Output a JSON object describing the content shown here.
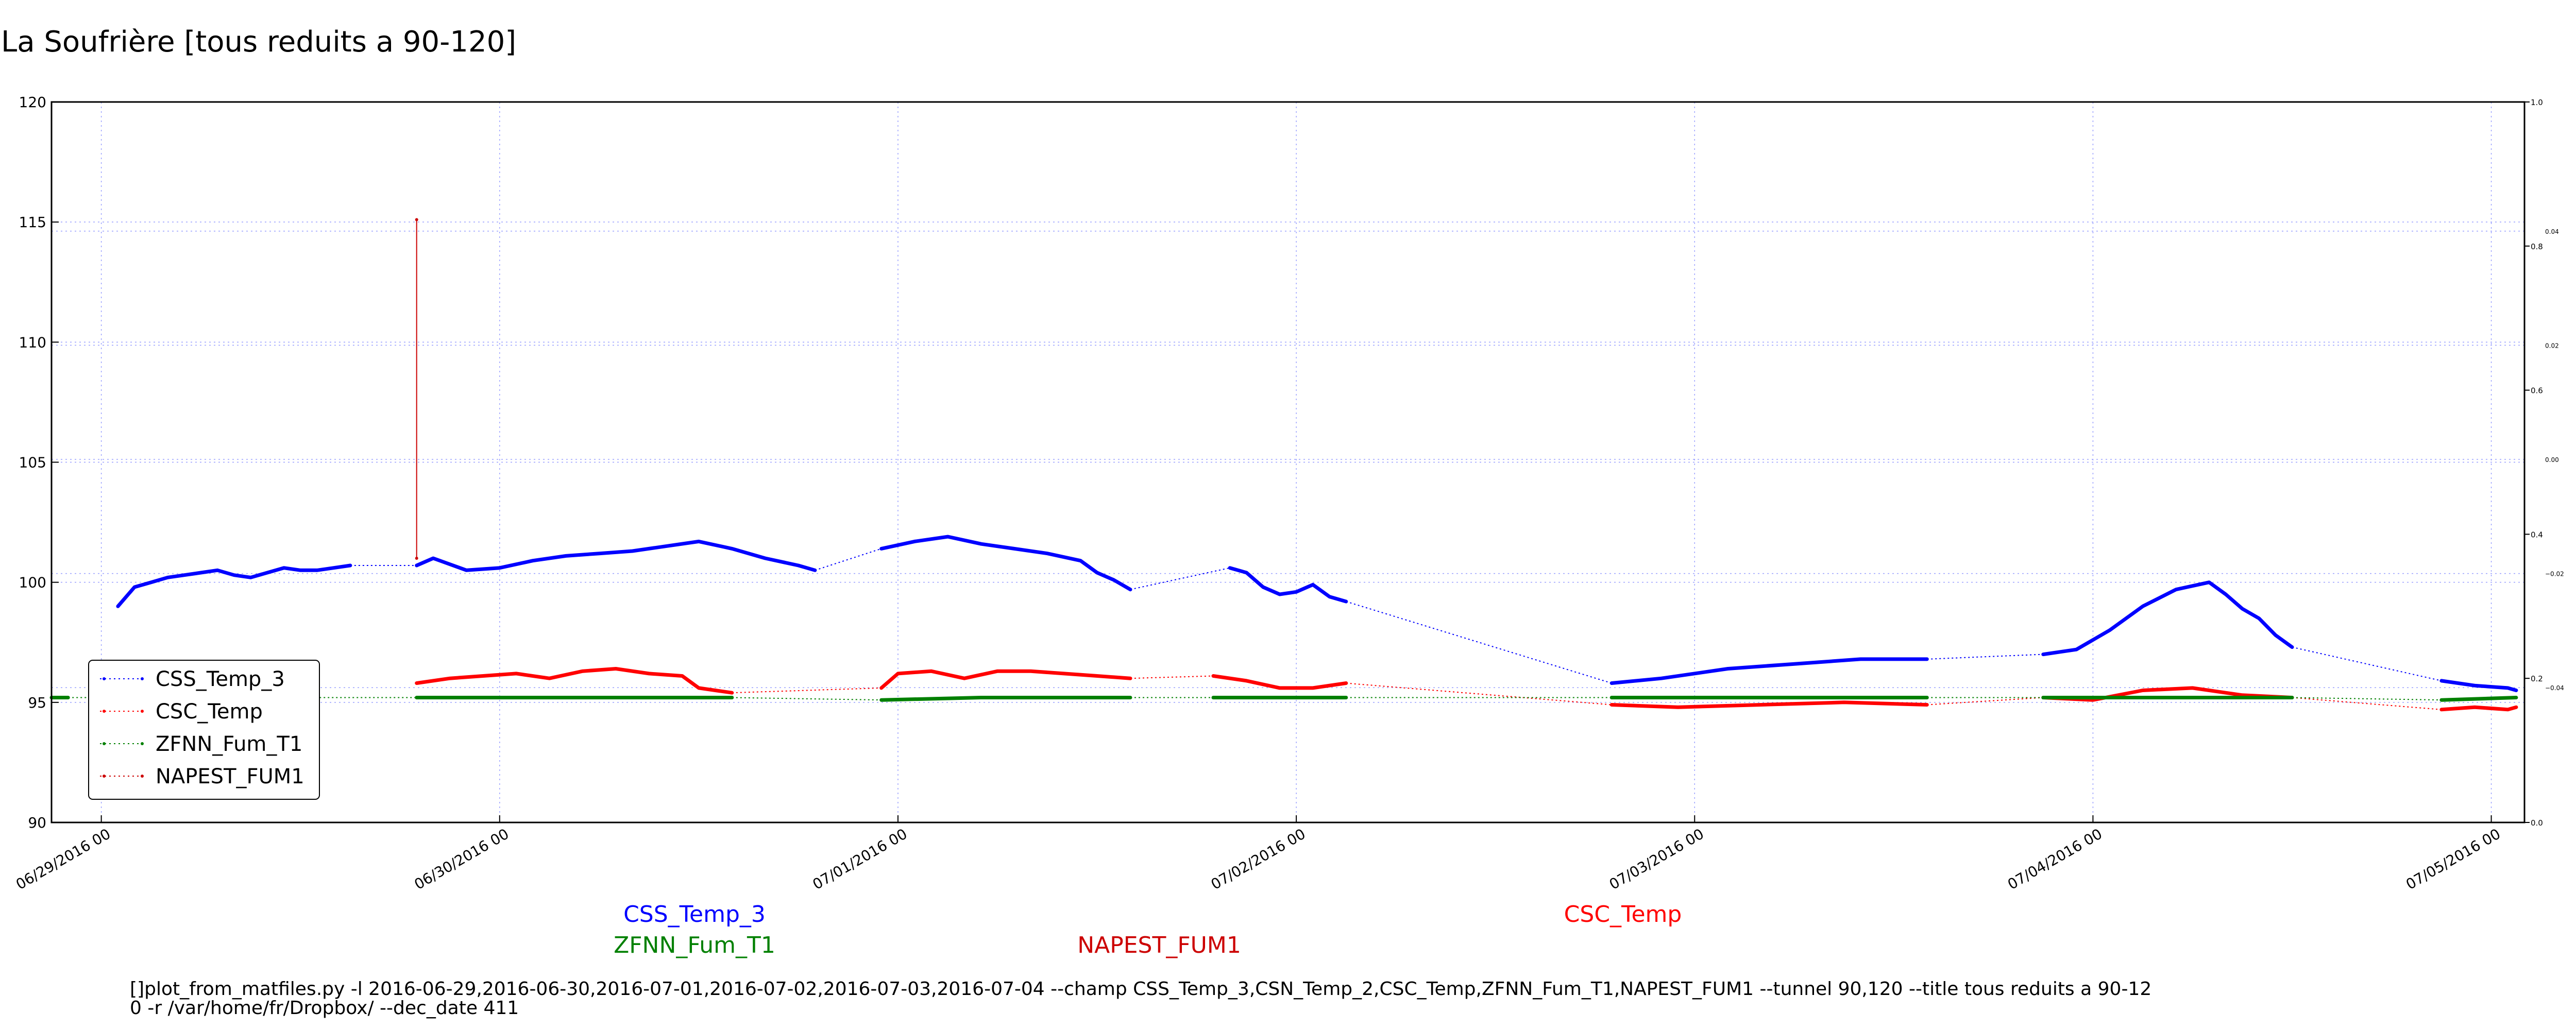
{
  "chart_data": {
    "type": "line",
    "title": "La Soufrière [tous reduits a 90-120]",
    "xlabel": "",
    "ylabel": "",
    "ylim": [
      90,
      120
    ],
    "yticks": [
      "90",
      "95",
      "100",
      "105",
      "110",
      "115",
      "120"
    ],
    "xlim": [
      "2016-06-28 21:00",
      "2016-07-05 02:00"
    ],
    "xticks": [
      {
        "t": "2016-06-29 00:00",
        "label": "06/29/2016 00"
      },
      {
        "t": "2016-06-30 00:00",
        "label": "06/30/2016 00"
      },
      {
        "t": "2016-07-01 00:00",
        "label": "07/01/2016 00"
      },
      {
        "t": "2016-07-02 00:00",
        "label": "07/02/2016 00"
      },
      {
        "t": "2016-07-03 00:00",
        "label": "07/03/2016 00"
      },
      {
        "t": "2016-07-04 00:00",
        "label": "07/04/2016 00"
      },
      {
        "t": "2016-07-05 00:00",
        "label": "07/05/2016 00"
      }
    ],
    "right_axis": {
      "outer_ticks": [
        "0.0",
        "0.2",
        "0.4",
        "0.6",
        "0.8",
        "1.0"
      ],
      "inner_ticks": [
        "−0.04",
        "−0.02",
        "0.00",
        "0.02",
        "0.04"
      ]
    },
    "grid": true,
    "legend_placement": "lower-left",
    "legend": [
      {
        "name": "CSS_Temp_3",
        "color": "#0000ff"
      },
      {
        "name": "CSC_Temp",
        "color": "#ff0000"
      },
      {
        "name": "ZFNN_Fum_T1",
        "color": "#008000"
      },
      {
        "name": "NAPEST_FUM1",
        "color": "#cc0000"
      }
    ],
    "series": [
      {
        "name": "CSS_Temp_3",
        "color": "#0000ff",
        "segments": [
          [
            [
              "2016-06-29 01:00",
              99.0
            ],
            [
              "2016-06-29 02:00",
              99.8
            ],
            [
              "2016-06-29 03:00",
              100.0
            ],
            [
              "2016-06-29 04:00",
              100.2
            ],
            [
              "2016-06-29 05:00",
              100.3
            ],
            [
              "2016-06-29 06:00",
              100.4
            ],
            [
              "2016-06-29 07:00",
              100.5
            ],
            [
              "2016-06-29 08:00",
              100.3
            ],
            [
              "2016-06-29 09:00",
              100.2
            ],
            [
              "2016-06-29 10:00",
              100.4
            ],
            [
              "2016-06-29 11:00",
              100.6
            ],
            [
              "2016-06-29 12:00",
              100.5
            ],
            [
              "2016-06-29 13:00",
              100.5
            ],
            [
              "2016-06-29 14:00",
              100.6
            ],
            [
              "2016-06-29 15:00",
              100.7
            ]
          ],
          [
            [
              "2016-06-29 19:00",
              100.7
            ],
            [
              "2016-06-29 20:00",
              101.0
            ],
            [
              "2016-06-29 22:00",
              100.5
            ],
            [
              "2016-06-30 00:00",
              100.6
            ],
            [
              "2016-06-30 02:00",
              100.9
            ],
            [
              "2016-06-30 04:00",
              101.1
            ],
            [
              "2016-06-30 06:00",
              101.2
            ],
            [
              "2016-06-30 08:00",
              101.3
            ],
            [
              "2016-06-30 10:00",
              101.5
            ],
            [
              "2016-06-30 12:00",
              101.7
            ],
            [
              "2016-06-30 14:00",
              101.4
            ],
            [
              "2016-06-30 16:00",
              101.0
            ],
            [
              "2016-06-30 18:00",
              100.7
            ],
            [
              "2016-06-30 19:00",
              100.5
            ]
          ],
          [
            [
              "2016-06-30 23:00",
              101.4
            ],
            [
              "2016-07-01 01:00",
              101.7
            ],
            [
              "2016-07-01 03:00",
              101.9
            ],
            [
              "2016-07-01 05:00",
              101.6
            ],
            [
              "2016-07-01 07:00",
              101.4
            ],
            [
              "2016-07-01 09:00",
              101.2
            ],
            [
              "2016-07-01 11:00",
              100.9
            ],
            [
              "2016-07-01 12:00",
              100.4
            ],
            [
              "2016-07-01 13:00",
              100.1
            ],
            [
              "2016-07-01 14:00",
              99.7
            ]
          ],
          [
            [
              "2016-07-01 20:00",
              100.6
            ],
            [
              "2016-07-01 21:00",
              100.4
            ],
            [
              "2016-07-01 22:00",
              99.8
            ],
            [
              "2016-07-01 23:00",
              99.5
            ],
            [
              "2016-07-02 00:00",
              99.6
            ],
            [
              "2016-07-02 01:00",
              99.9
            ],
            [
              "2016-07-02 02:00",
              99.4
            ],
            [
              "2016-07-02 03:00",
              99.2
            ]
          ],
          [
            [
              "2016-07-02 19:00",
              95.8
            ],
            [
              "2016-07-02 22:00",
              96.0
            ],
            [
              "2016-07-03 02:00",
              96.4
            ],
            [
              "2016-07-03 06:00",
              96.6
            ],
            [
              "2016-07-03 10:00",
              96.8
            ],
            [
              "2016-07-03 14:00",
              96.8
            ]
          ],
          [
            [
              "2016-07-03 21:00",
              97.0
            ],
            [
              "2016-07-03 23:00",
              97.2
            ],
            [
              "2016-07-04 01:00",
              98.0
            ],
            [
              "2016-07-04 03:00",
              99.0
            ],
            [
              "2016-07-04 05:00",
              99.7
            ],
            [
              "2016-07-04 07:00",
              100.0
            ],
            [
              "2016-07-04 08:00",
              99.5
            ],
            [
              "2016-07-04 09:00",
              98.9
            ],
            [
              "2016-07-04 10:00",
              98.5
            ],
            [
              "2016-07-04 11:00",
              97.8
            ],
            [
              "2016-07-04 12:00",
              97.3
            ]
          ],
          [
            [
              "2016-07-04 21:00",
              95.9
            ],
            [
              "2016-07-04 23:00",
              95.7
            ],
            [
              "2016-07-05 01:00",
              95.6
            ],
            [
              "2016-07-05 01:30",
              95.5
            ]
          ]
        ]
      },
      {
        "name": "CSC_Temp",
        "color": "#ff0000",
        "segments": [
          [
            [
              "2016-06-29 19:00",
              95.8
            ],
            [
              "2016-06-29 21:00",
              96.0
            ],
            [
              "2016-06-29 23:00",
              96.1
            ],
            [
              "2016-06-30 01:00",
              96.2
            ],
            [
              "2016-06-30 03:00",
              96.0
            ],
            [
              "2016-06-30 05:00",
              96.3
            ],
            [
              "2016-06-30 07:00",
              96.4
            ],
            [
              "2016-06-30 09:00",
              96.2
            ],
            [
              "2016-06-30 11:00",
              96.1
            ],
            [
              "2016-06-30 12:00",
              95.6
            ],
            [
              "2016-06-30 14:00",
              95.4
            ]
          ],
          [
            [
              "2016-06-30 23:00",
              95.6
            ],
            [
              "2016-07-01 00:00",
              96.2
            ],
            [
              "2016-07-01 02:00",
              96.3
            ],
            [
              "2016-07-01 04:00",
              96.0
            ],
            [
              "2016-07-01 06:00",
              96.3
            ],
            [
              "2016-07-01 08:00",
              96.3
            ],
            [
              "2016-07-01 10:00",
              96.2
            ],
            [
              "2016-07-01 12:00",
              96.1
            ],
            [
              "2016-07-01 14:00",
              96.0
            ]
          ],
          [
            [
              "2016-07-01 19:00",
              96.1
            ],
            [
              "2016-07-01 21:00",
              95.9
            ],
            [
              "2016-07-01 23:00",
              95.6
            ],
            [
              "2016-07-02 01:00",
              95.6
            ],
            [
              "2016-07-02 03:00",
              95.8
            ]
          ],
          [
            [
              "2016-07-02 19:00",
              94.9
            ],
            [
              "2016-07-02 23:00",
              94.8
            ],
            [
              "2016-07-03 04:00",
              94.9
            ],
            [
              "2016-07-03 09:00",
              95.0
            ],
            [
              "2016-07-03 14:00",
              94.9
            ]
          ],
          [
            [
              "2016-07-03 21:00",
              95.2
            ],
            [
              "2016-07-04 00:00",
              95.1
            ],
            [
              "2016-07-04 03:00",
              95.5
            ],
            [
              "2016-07-04 06:00",
              95.6
            ],
            [
              "2016-07-04 09:00",
              95.3
            ],
            [
              "2016-07-04 12:00",
              95.2
            ]
          ],
          [
            [
              "2016-07-04 21:00",
              94.7
            ],
            [
              "2016-07-04 23:00",
              94.8
            ],
            [
              "2016-07-05 01:00",
              94.7
            ],
            [
              "2016-07-05 01:30",
              94.8
            ]
          ]
        ]
      },
      {
        "name": "ZFNN_Fum_T1",
        "color": "#008000",
        "segments": [
          [
            [
              "2016-06-28 21:00",
              95.2
            ],
            [
              "2016-06-28 22:00",
              95.2
            ]
          ],
          [
            [
              "2016-06-29 19:00",
              95.2
            ],
            [
              "2016-06-29 23:00",
              95.2
            ],
            [
              "2016-06-30 05:00",
              95.2
            ],
            [
              "2016-06-30 11:00",
              95.2
            ],
            [
              "2016-06-30 14:00",
              95.2
            ]
          ],
          [
            [
              "2016-06-30 23:00",
              95.1
            ],
            [
              "2016-07-01 05:00",
              95.2
            ],
            [
              "2016-07-01 11:00",
              95.2
            ],
            [
              "2016-07-01 14:00",
              95.2
            ]
          ],
          [
            [
              "2016-07-01 19:00",
              95.2
            ],
            [
              "2016-07-01 23:00",
              95.2
            ],
            [
              "2016-07-02 03:00",
              95.2
            ]
          ],
          [
            [
              "2016-07-02 19:00",
              95.2
            ],
            [
              "2016-07-03 02:00",
              95.2
            ],
            [
              "2016-07-03 09:00",
              95.2
            ],
            [
              "2016-07-03 14:00",
              95.2
            ]
          ],
          [
            [
              "2016-07-03 21:00",
              95.2
            ],
            [
              "2016-07-04 04:00",
              95.2
            ],
            [
              "2016-07-04 12:00",
              95.2
            ]
          ],
          [
            [
              "2016-07-04 21:00",
              95.1
            ],
            [
              "2016-07-05 01:30",
              95.2
            ]
          ]
        ]
      },
      {
        "name": "NAPEST_FUM1",
        "color": "#cc0000",
        "segments": [
          [
            [
              "2016-06-29 19:00",
              101.0
            ],
            [
              "2016-06-29 19:00",
              115.1
            ]
          ]
        ]
      }
    ],
    "bottom_labels": [
      {
        "text": "CSS_Temp_3",
        "color": "#0000ff"
      },
      {
        "text": "ZFNN_Fum_T1",
        "color": "#008000"
      },
      {
        "text": "NAPEST_FUM1",
        "color": "#cc0000"
      },
      {
        "text": "CSC_Temp",
        "color": "#ff0000"
      }
    ]
  },
  "command_line": {
    "line1": "[]plot_from_matfiles.py -l 2016-06-29,2016-06-30,2016-07-01,2016-07-02,2016-07-03,2016-07-04 --champ CSS_Temp_3,CSN_Temp_2,CSC_Temp,ZFNN_Fum_T1,NAPEST_FUM1 --tunnel 90,120 --title tous reduits a 90-12",
    "line2": "0 -r /var/home/fr/Dropbox/ --dec_date 411"
  }
}
